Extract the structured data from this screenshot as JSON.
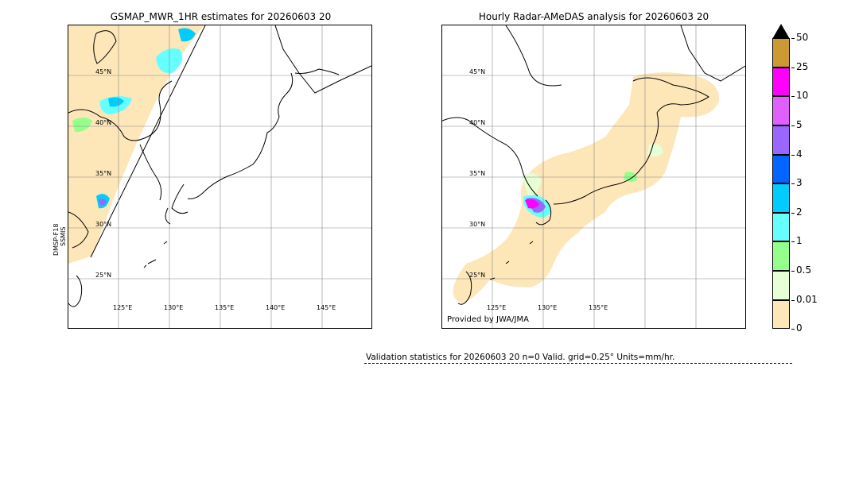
{
  "left_map": {
    "title": "GSMAP_MWR_1HR estimates for 20260603 20",
    "satellite_label_line1": "DMSP-F18",
    "satellite_label_line2": "SSMIS",
    "lat_labels": [
      "45°N",
      "40°N",
      "35°N",
      "30°N",
      "25°N"
    ],
    "lon_labels": [
      "125°E",
      "130°E",
      "135°E",
      "140°E",
      "145°E"
    ]
  },
  "right_map": {
    "title": "Hourly Radar-AMeDAS analysis for 20260603 20",
    "lat_labels": [
      "45°N",
      "40°N",
      "35°N",
      "30°N",
      "25°N"
    ],
    "lon_labels": [
      "125°E",
      "130°E",
      "135°E"
    ],
    "credit": "Provided by JWA/JMA"
  },
  "colorbar": {
    "levels": [
      "0",
      "0.01",
      "0.5",
      "1",
      "2",
      "3",
      "4",
      "5",
      "10",
      "25",
      "50"
    ],
    "colors": [
      "#fde6b8",
      "#e6ffd4",
      "#94ff8a",
      "#66ffff",
      "#00ccff",
      "#0066ff",
      "#9966ff",
      "#e060ff",
      "#ff00ff",
      "#cc9933"
    ],
    "extend_color": "#000000"
  },
  "stats": {
    "text": "Validation statistics for 20260603 20  n=0 Valid. grid=0.25° Units=mm/hr."
  }
}
